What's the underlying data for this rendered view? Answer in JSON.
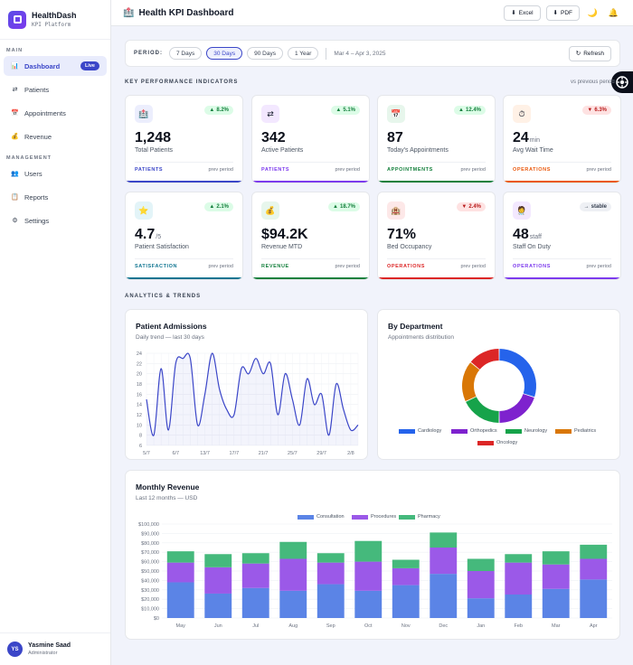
{
  "brand": {
    "title": "HealthDash",
    "subtitle": "KPI Platform"
  },
  "sidebar": {
    "sections": [
      {
        "label": "MAIN",
        "items": [
          {
            "label": "Dashboard",
            "icon": "chart-icon",
            "glyph": "📊",
            "active": true,
            "badge": "Live"
          },
          {
            "label": "Patients",
            "icon": "swap-icon",
            "glyph": "⇄"
          },
          {
            "label": "Appointments",
            "icon": "calendar-icon",
            "glyph": "📅"
          },
          {
            "label": "Revenue",
            "icon": "medal-icon",
            "glyph": "💰"
          }
        ]
      },
      {
        "label": "MANAGEMENT",
        "items": [
          {
            "label": "Users",
            "icon": "users-icon",
            "glyph": "👥"
          },
          {
            "label": "Reports",
            "icon": "clipboard-icon",
            "glyph": "📋"
          },
          {
            "label": "Settings",
            "icon": "gear-icon",
            "glyph": "⚙"
          }
        ]
      }
    ]
  },
  "user": {
    "initials": "YS",
    "name": "Yasmine Saad",
    "role": "Administrator"
  },
  "header": {
    "title": "Health KPI Dashboard",
    "title_glyph": "🏥",
    "excel_label": "Excel",
    "pdf_label": "PDF",
    "excel_glyph": "⬇",
    "pdf_glyph": "⬇",
    "theme_glyph": "🌙",
    "bell_glyph": "🔔"
  },
  "period": {
    "label": "PERIOD:",
    "options": [
      "7 Days",
      "30 Days",
      "90 Days",
      "1 Year"
    ],
    "active_index": 1,
    "range": "Mar 4 – Apr 3, 2025",
    "refresh_label": "Refresh",
    "refresh_glyph": "↻"
  },
  "kpi_section": {
    "title": "KEY PERFORMANCE INDICATORS",
    "note": "vs previous period"
  },
  "kpis": [
    {
      "value": "1,248",
      "unit": "",
      "label": "Total Patients",
      "category": "PATIENTS",
      "trend": "8.2%",
      "dir": "up",
      "color": "#3b46c8",
      "icon_bg": "#eceefd",
      "glyph": "🏥",
      "icon": "hospital-icon"
    },
    {
      "value": "342",
      "unit": "",
      "label": "Active Patients",
      "category": "PATIENTS",
      "trend": "5.1%",
      "dir": "up",
      "color": "#7c3aed",
      "icon_bg": "#f3e8ff",
      "glyph": "⇄",
      "icon": "swap-icon"
    },
    {
      "value": "87",
      "unit": "",
      "label": "Today's Appointments",
      "category": "APPOINTMENTS",
      "trend": "12.4%",
      "dir": "up",
      "color": "#15803d",
      "icon_bg": "#e7f6ec",
      "glyph": "📅",
      "icon": "calendar-icon"
    },
    {
      "value": "24",
      "unit": "min",
      "label": "Avg Wait Time",
      "category": "OPERATIONS",
      "trend": "6.3%",
      "dir": "down",
      "color": "#ea580c",
      "icon_bg": "#fff1e6",
      "glyph": "⏱",
      "icon": "stopwatch-icon"
    },
    {
      "value": "4.7",
      "unit": "/5",
      "label": "Patient Satisfaction",
      "category": "SATISFACTION",
      "trend": "2.1%",
      "dir": "up",
      "color": "#0e7490",
      "icon_bg": "#e3f4f8",
      "glyph": "⭐",
      "icon": "star-icon"
    },
    {
      "value": "$94.2K",
      "unit": "",
      "label": "Revenue MTD",
      "category": "REVENUE",
      "trend": "18.7%",
      "dir": "up",
      "color": "#15803d",
      "icon_bg": "#e7f6ec",
      "glyph": "💰",
      "icon": "medal-icon"
    },
    {
      "value": "71%",
      "unit": "",
      "label": "Bed Occupancy",
      "category": "OPERATIONS",
      "trend": "2.4%",
      "dir": "down",
      "color": "#dc2626",
      "icon_bg": "#fde8e8",
      "glyph": "🏨",
      "icon": "building-icon"
    },
    {
      "value": "48",
      "unit": "staff",
      "label": "Staff On Duty",
      "category": "OPERATIONS",
      "trend": "stable",
      "dir": "flat",
      "color": "#7c3aed",
      "icon_bg": "#f3e8ff",
      "glyph": "🧑‍⚕️",
      "icon": "staff-icon"
    }
  ],
  "kpi_prev_label": "prev period",
  "analytics_section": {
    "title": "ANALYTICS & TRENDS"
  },
  "chart_data": [
    {
      "type": "line",
      "title": "Patient Admissions",
      "subtitle": "Daily trend — last 30 days",
      "x": [
        "5/7",
        "",
        "",
        "",
        "6/7",
        "",
        "",
        "",
        "13/7",
        "",
        "",
        "",
        "17/7",
        "",
        "",
        "",
        "21/7",
        "",
        "",
        "",
        "25/7",
        "",
        "",
        "",
        "29/7",
        "",
        "",
        "",
        "2/8",
        ""
      ],
      "values": [
        15,
        8,
        21,
        9,
        22,
        23,
        23,
        10,
        16,
        24,
        17,
        13,
        12,
        21,
        20,
        23,
        20,
        22,
        12,
        20,
        15,
        10,
        19,
        14,
        16,
        8,
        18,
        13,
        9,
        10
      ],
      "ylim": [
        6,
        24
      ],
      "yticks": [
        6,
        8,
        10,
        12,
        14,
        16,
        18,
        20,
        22,
        24
      ],
      "color": "#3b46c8",
      "grid": true
    },
    {
      "type": "pie",
      "title": "By Department",
      "subtitle": "Appointments distribution",
      "categories": [
        "Cardiology",
        "Orthopedics",
        "Neurology",
        "Pediatrics",
        "Oncology"
      ],
      "values": [
        30,
        20,
        18,
        18,
        14
      ],
      "colors": [
        "#2563eb",
        "#7e22ce",
        "#16a34a",
        "#d97706",
        "#dc2626"
      ],
      "legend": "bottom"
    },
    {
      "type": "bar",
      "stacked": true,
      "title": "Monthly Revenue",
      "subtitle": "Last 12 months — USD",
      "categories": [
        "May",
        "Jun",
        "Jul",
        "Aug",
        "Sep",
        "Oct",
        "Nov",
        "Dec",
        "Jan",
        "Feb",
        "Mar",
        "Apr"
      ],
      "series": [
        {
          "name": "Consultation",
          "color": "#5b84e6",
          "values": [
            38000,
            26000,
            32000,
            29000,
            36000,
            29000,
            35000,
            47000,
            21000,
            25000,
            31000,
            41000
          ]
        },
        {
          "name": "Procedures",
          "color": "#9b59e8",
          "values": [
            21000,
            28000,
            26000,
            34000,
            23000,
            31000,
            18000,
            28000,
            29000,
            34000,
            26000,
            22000
          ]
        },
        {
          "name": "Pharmacy",
          "color": "#45b97c",
          "values": [
            12000,
            14000,
            11000,
            18000,
            10000,
            22000,
            9000,
            16000,
            13000,
            9000,
            14000,
            15000
          ]
        }
      ],
      "ylim": [
        0,
        100000
      ],
      "yticks": [
        "$0",
        "$10,000",
        "$20,000",
        "$30,000",
        "$40,000",
        "$50,000",
        "$60,000",
        "$70,000",
        "$80,000",
        "$90,000",
        "$100,000"
      ],
      "legend": "top"
    }
  ]
}
